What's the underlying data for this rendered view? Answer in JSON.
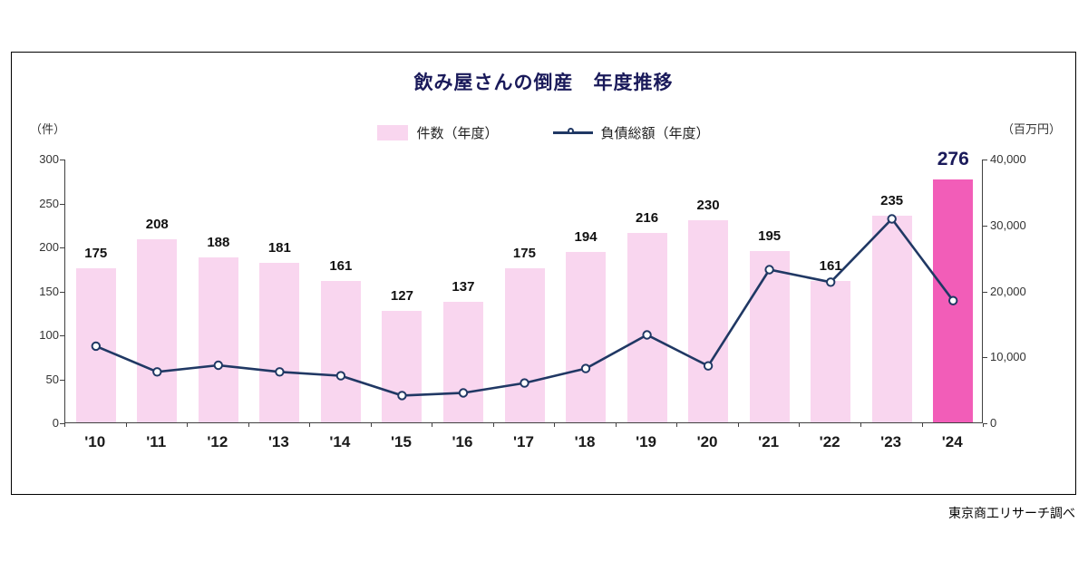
{
  "title": "飲み屋さんの倒産　年度推移",
  "left_axis_unit": "（件）",
  "right_axis_unit": "（百万円）",
  "legend": {
    "bars": "件数（年度）",
    "line": "負債総額（年度）"
  },
  "footer": "東京商工リサーチ調べ",
  "colors": {
    "bar": "#f9d6ef",
    "bar_highlight": "#f25db8",
    "line": "#203864",
    "title": "#1a1a5a"
  },
  "chart_data": {
    "type": "bar",
    "subtype": "bar+line combo, dual axis",
    "categories": [
      "'10",
      "'11",
      "'12",
      "'13",
      "'14",
      "'15",
      "'16",
      "'17",
      "'18",
      "'19",
      "'20",
      "'21",
      "'22",
      "'23",
      "'24"
    ],
    "series": [
      {
        "name": "件数（年度）",
        "type": "bar",
        "axis": "left",
        "values": [
          175,
          208,
          188,
          181,
          161,
          127,
          137,
          175,
          194,
          216,
          230,
          195,
          161,
          235,
          276
        ]
      },
      {
        "name": "負債総額（年度）",
        "type": "line",
        "axis": "right",
        "values": [
          11700,
          7800,
          8800,
          7800,
          7200,
          4200,
          4600,
          6100,
          8300,
          13400,
          8700,
          23300,
          21400,
          31000,
          18600
        ]
      }
    ],
    "left_axis": {
      "label": "（件）",
      "min": 0,
      "max": 300,
      "step": 50,
      "tick_labels": [
        "0",
        "50",
        "100",
        "150",
        "200",
        "250",
        "300"
      ]
    },
    "right_axis": {
      "label": "（百万円）",
      "min": 0,
      "max": 40000,
      "step": 10000,
      "tick_labels": [
        "0",
        "10,000",
        "20,000",
        "30,000",
        "40,000"
      ]
    },
    "highlight_index": 14,
    "grid": false,
    "legend_position": "top-center",
    "title": "飲み屋さんの倒産　年度推移"
  }
}
